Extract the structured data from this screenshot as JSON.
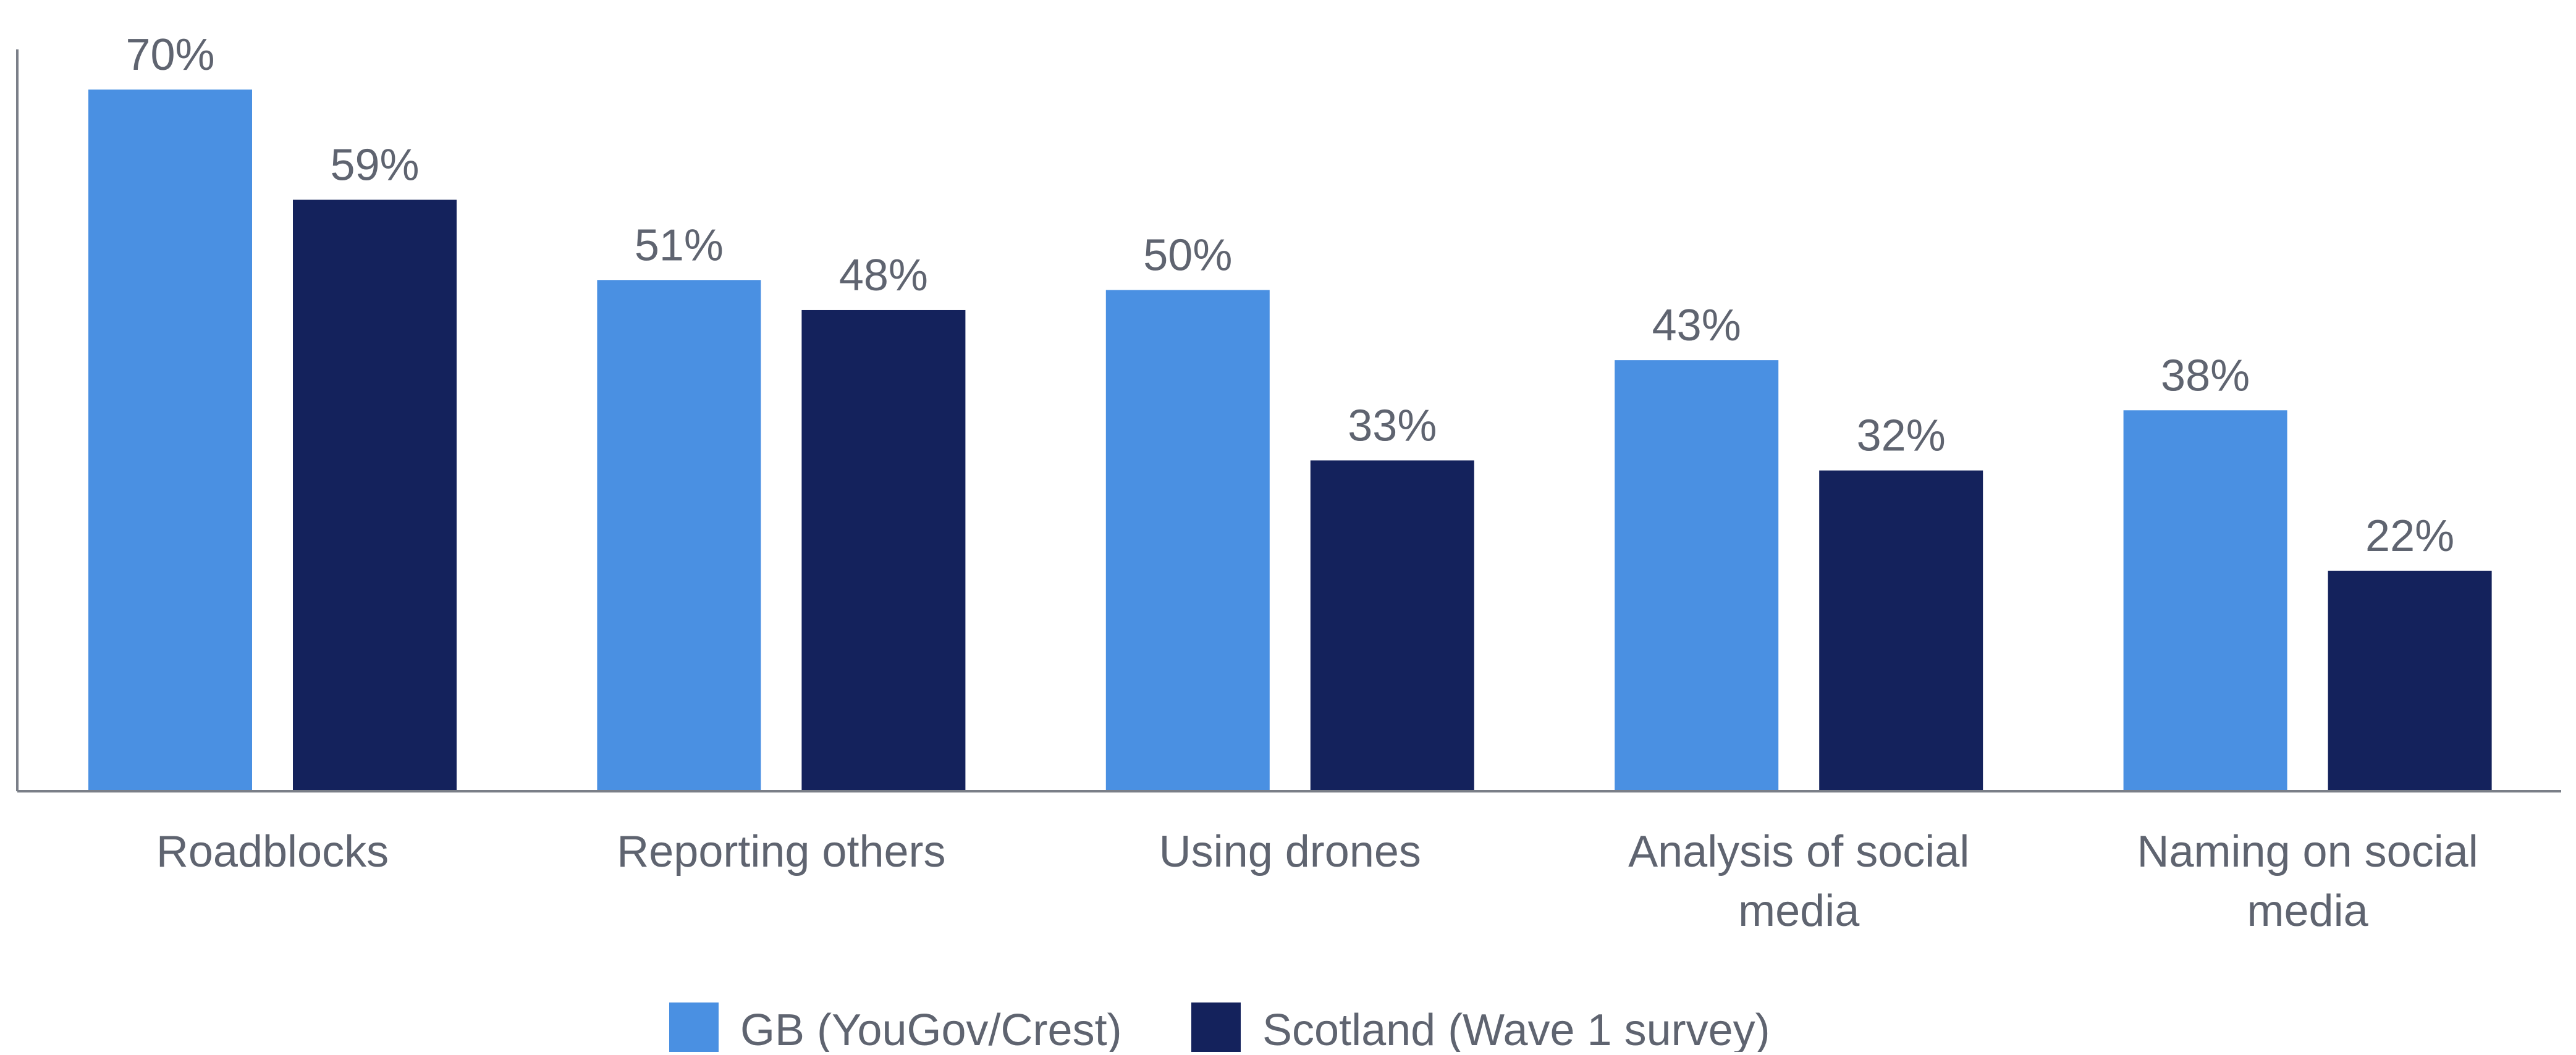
{
  "chart_data": {
    "type": "bar",
    "categories": [
      [
        "Roadblocks"
      ],
      [
        "Reporting others"
      ],
      [
        "Using drones"
      ],
      [
        "Analysis of social",
        "media"
      ],
      [
        "Naming on social",
        "media"
      ]
    ],
    "series": [
      {
        "name": "GB (YouGov/Crest)",
        "color": "#4a90e2",
        "values": [
          70,
          51,
          50,
          43,
          38
        ],
        "labels": [
          "70%",
          "51%",
          "50%",
          "43%",
          "38%"
        ]
      },
      {
        "name": "Scotland (Wave 1 survey)",
        "color": "#14225c",
        "values": [
          59,
          48,
          33,
          32,
          22
        ],
        "labels": [
          "59%",
          "48%",
          "33%",
          "32%",
          "22%"
        ]
      }
    ],
    "ylim": [
      0,
      74
    ],
    "grid": false,
    "legend_position": "bottom",
    "axis_color": "#7a7f88"
  }
}
